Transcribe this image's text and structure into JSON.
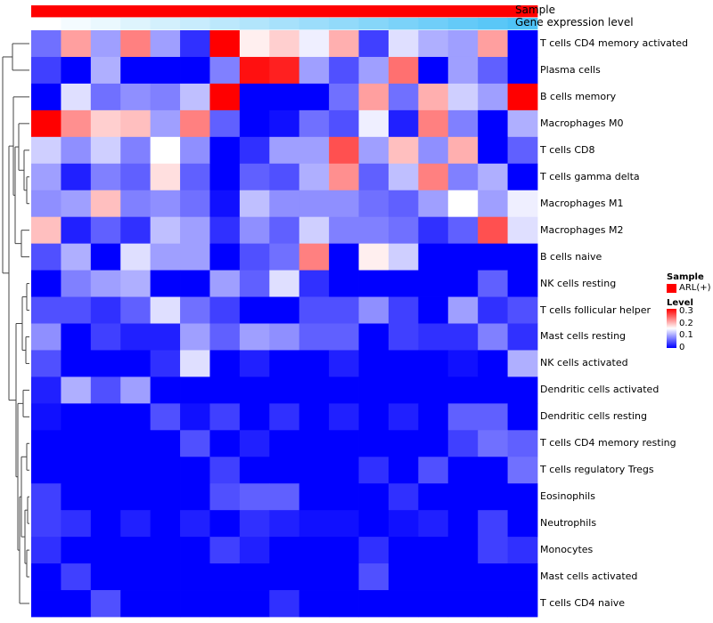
{
  "chart_data": {
    "type": "heatmap",
    "annotation_tracks": [
      {
        "name": "Sample",
        "values": [
          "ARL(+)",
          "ARL(+)",
          "ARL(+)",
          "ARL(+)",
          "ARL(+)",
          "ARL(+)",
          "ARL(+)",
          "ARL(+)",
          "ARL(+)",
          "ARL(+)",
          "ARL(+)",
          "ARL(+)",
          "ARL(+)",
          "ARL(+)",
          "ARL(+)",
          "ARL(+)",
          "ARL(+)"
        ]
      },
      {
        "name": "Gene expression level",
        "values": [
          0.0,
          0.06,
          0.12,
          0.19,
          0.25,
          0.31,
          0.38,
          0.44,
          0.5,
          0.56,
          0.62,
          0.69,
          0.75,
          0.81,
          0.88,
          0.94,
          1.0
        ]
      }
    ],
    "rows": [
      "T cells CD4 memory activated",
      "Plasma cells",
      "B cells memory",
      "Macrophages M0",
      "T cells CD8",
      "T cells gamma delta",
      "Macrophages M1",
      "Macrophages M2",
      "B cells naive",
      "NK cells resting",
      "T cells follicular helper",
      "Mast cells resting",
      "NK cells activated",
      "Dendritic cells activated",
      "Dendritic cells resting",
      "T cells CD4 memory resting",
      "T cells regulatory  Tregs",
      "Eosinophils",
      "Neutrophils",
      "Monocytes",
      "Mast cells activated",
      "T cells CD4 naive"
    ],
    "values": [
      [
        0.07,
        0.22,
        0.1,
        0.24,
        0.1,
        0.03,
        0.32,
        0.17,
        0.19,
        0.15,
        0.21,
        0.04,
        0.14,
        0.11,
        0.1,
        0.22,
        0.0
      ],
      [
        0.04,
        0.0,
        0.11,
        0.0,
        0.0,
        0.0,
        0.08,
        0.31,
        0.3,
        0.1,
        0.05,
        0.1,
        0.25,
        0.0,
        0.1,
        0.06,
        0.0
      ],
      [
        0.0,
        0.14,
        0.07,
        0.09,
        0.08,
        0.12,
        0.32,
        0.0,
        0.0,
        0.0,
        0.07,
        0.22,
        0.07,
        0.21,
        0.13,
        0.1,
        0.32
      ],
      [
        0.32,
        0.23,
        0.19,
        0.2,
        0.1,
        0.24,
        0.06,
        0.0,
        0.01,
        0.07,
        0.05,
        0.15,
        0.02,
        0.24,
        0.08,
        0.0,
        0.11
      ],
      [
        0.13,
        0.09,
        0.13,
        0.08,
        0.16,
        0.09,
        0.0,
        0.03,
        0.1,
        0.1,
        0.27,
        0.1,
        0.2,
        0.09,
        0.21,
        0.0,
        0.06
      ],
      [
        0.1,
        0.02,
        0.08,
        0.06,
        0.18,
        0.06,
        0.0,
        0.06,
        0.05,
        0.11,
        0.23,
        0.06,
        0.12,
        0.24,
        0.08,
        0.11,
        0.0
      ],
      [
        0.09,
        0.1,
        0.2,
        0.08,
        0.09,
        0.07,
        0.01,
        0.12,
        0.09,
        0.09,
        0.09,
        0.07,
        0.06,
        0.1,
        0.16,
        0.1,
        0.15
      ],
      [
        0.2,
        0.02,
        0.06,
        0.03,
        0.12,
        0.1,
        0.03,
        0.09,
        0.06,
        0.13,
        0.08,
        0.08,
        0.07,
        0.03,
        0.06,
        0.27,
        0.14
      ],
      [
        0.05,
        0.11,
        0.0,
        0.14,
        0.1,
        0.1,
        0.0,
        0.05,
        0.07,
        0.24,
        0.0,
        0.17,
        0.13,
        0.0,
        0.0,
        0.0,
        0.0
      ],
      [
        0.0,
        0.08,
        0.1,
        0.11,
        0.0,
        0.0,
        0.1,
        0.06,
        0.14,
        0.03,
        0.0,
        0.0,
        0.0,
        0.0,
        0.0,
        0.06,
        0.0
      ],
      [
        0.05,
        0.05,
        0.03,
        0.06,
        0.14,
        0.07,
        0.04,
        0.0,
        0.0,
        0.05,
        0.05,
        0.09,
        0.04,
        0.0,
        0.1,
        0.03,
        0.05
      ],
      [
        0.09,
        0.0,
        0.04,
        0.02,
        0.02,
        0.1,
        0.06,
        0.1,
        0.09,
        0.06,
        0.06,
        0.0,
        0.04,
        0.03,
        0.03,
        0.08,
        0.03
      ],
      [
        0.05,
        0.0,
        0.0,
        0.0,
        0.03,
        0.14,
        0.0,
        0.02,
        0.0,
        0.0,
        0.02,
        0.0,
        0.0,
        0.0,
        0.01,
        0.0,
        0.11
      ],
      [
        0.02,
        0.11,
        0.05,
        0.1,
        0.0,
        0.0,
        0.0,
        0.0,
        0.0,
        0.0,
        0.0,
        0.0,
        0.0,
        0.0,
        0.0,
        0.0,
        0.0
      ],
      [
        0.01,
        0.0,
        0.0,
        0.0,
        0.05,
        0.01,
        0.04,
        0.0,
        0.03,
        0.0,
        0.02,
        0.0,
        0.02,
        0.0,
        0.06,
        0.06,
        0.0
      ],
      [
        0.0,
        0.0,
        0.0,
        0.0,
        0.0,
        0.05,
        0.0,
        0.02,
        0.0,
        0.0,
        0.0,
        0.0,
        0.0,
        0.0,
        0.04,
        0.07,
        0.06
      ],
      [
        0.0,
        0.0,
        0.0,
        0.0,
        0.0,
        0.0,
        0.04,
        0.0,
        0.0,
        0.0,
        0.0,
        0.03,
        0.0,
        0.05,
        0.0,
        0.0,
        0.07
      ],
      [
        0.04,
        0.0,
        0.0,
        0.0,
        0.0,
        0.0,
        0.05,
        0.06,
        0.06,
        0.0,
        0.0,
        0.0,
        0.03,
        0.0,
        0.0,
        0.0,
        0.0
      ],
      [
        0.04,
        0.03,
        0.0,
        0.02,
        0.0,
        0.02,
        0.0,
        0.03,
        0.02,
        0.01,
        0.01,
        0.0,
        0.01,
        0.02,
        0.0,
        0.04,
        0.0
      ],
      [
        0.03,
        0.0,
        0.0,
        0.0,
        0.0,
        0.0,
        0.04,
        0.02,
        0.0,
        0.0,
        0.0,
        0.03,
        0.0,
        0.0,
        0.0,
        0.04,
        0.03
      ],
      [
        0.0,
        0.04,
        0.0,
        0.0,
        0.0,
        0.0,
        0.0,
        0.0,
        0.0,
        0.0,
        0.0,
        0.05,
        0.0,
        0.0,
        0.0,
        0.0,
        0.0
      ],
      [
        0.0,
        0.0,
        0.05,
        0.0,
        0.0,
        0.0,
        0.0,
        0.0,
        0.03,
        0.0,
        0.0,
        0.0,
        0.0,
        0.0,
        0.0,
        0.0,
        0.0
      ]
    ],
    "color_scale": {
      "min": 0,
      "max": 0.32,
      "low": "#0000FF",
      "mid": "#FFFFFF",
      "high": "#FF0000",
      "midpoint": 0.16
    },
    "legend": {
      "sample_title": "Sample",
      "sample_entry": "ARL(+)",
      "sample_color": "#FF0000",
      "level_title": "Level",
      "level_ticks": [
        "0.3",
        "0.2",
        "0.1",
        "0"
      ],
      "level_tick_values": [
        0.3,
        0.2,
        0.1,
        0.0
      ]
    },
    "dendrogram": "row clustering tree, drawn on the left side"
  },
  "colors": {
    "gene_track_low": "#FFFFFF",
    "gene_track_high": "#4FC3F7",
    "dendrogram_line": "#444444"
  }
}
